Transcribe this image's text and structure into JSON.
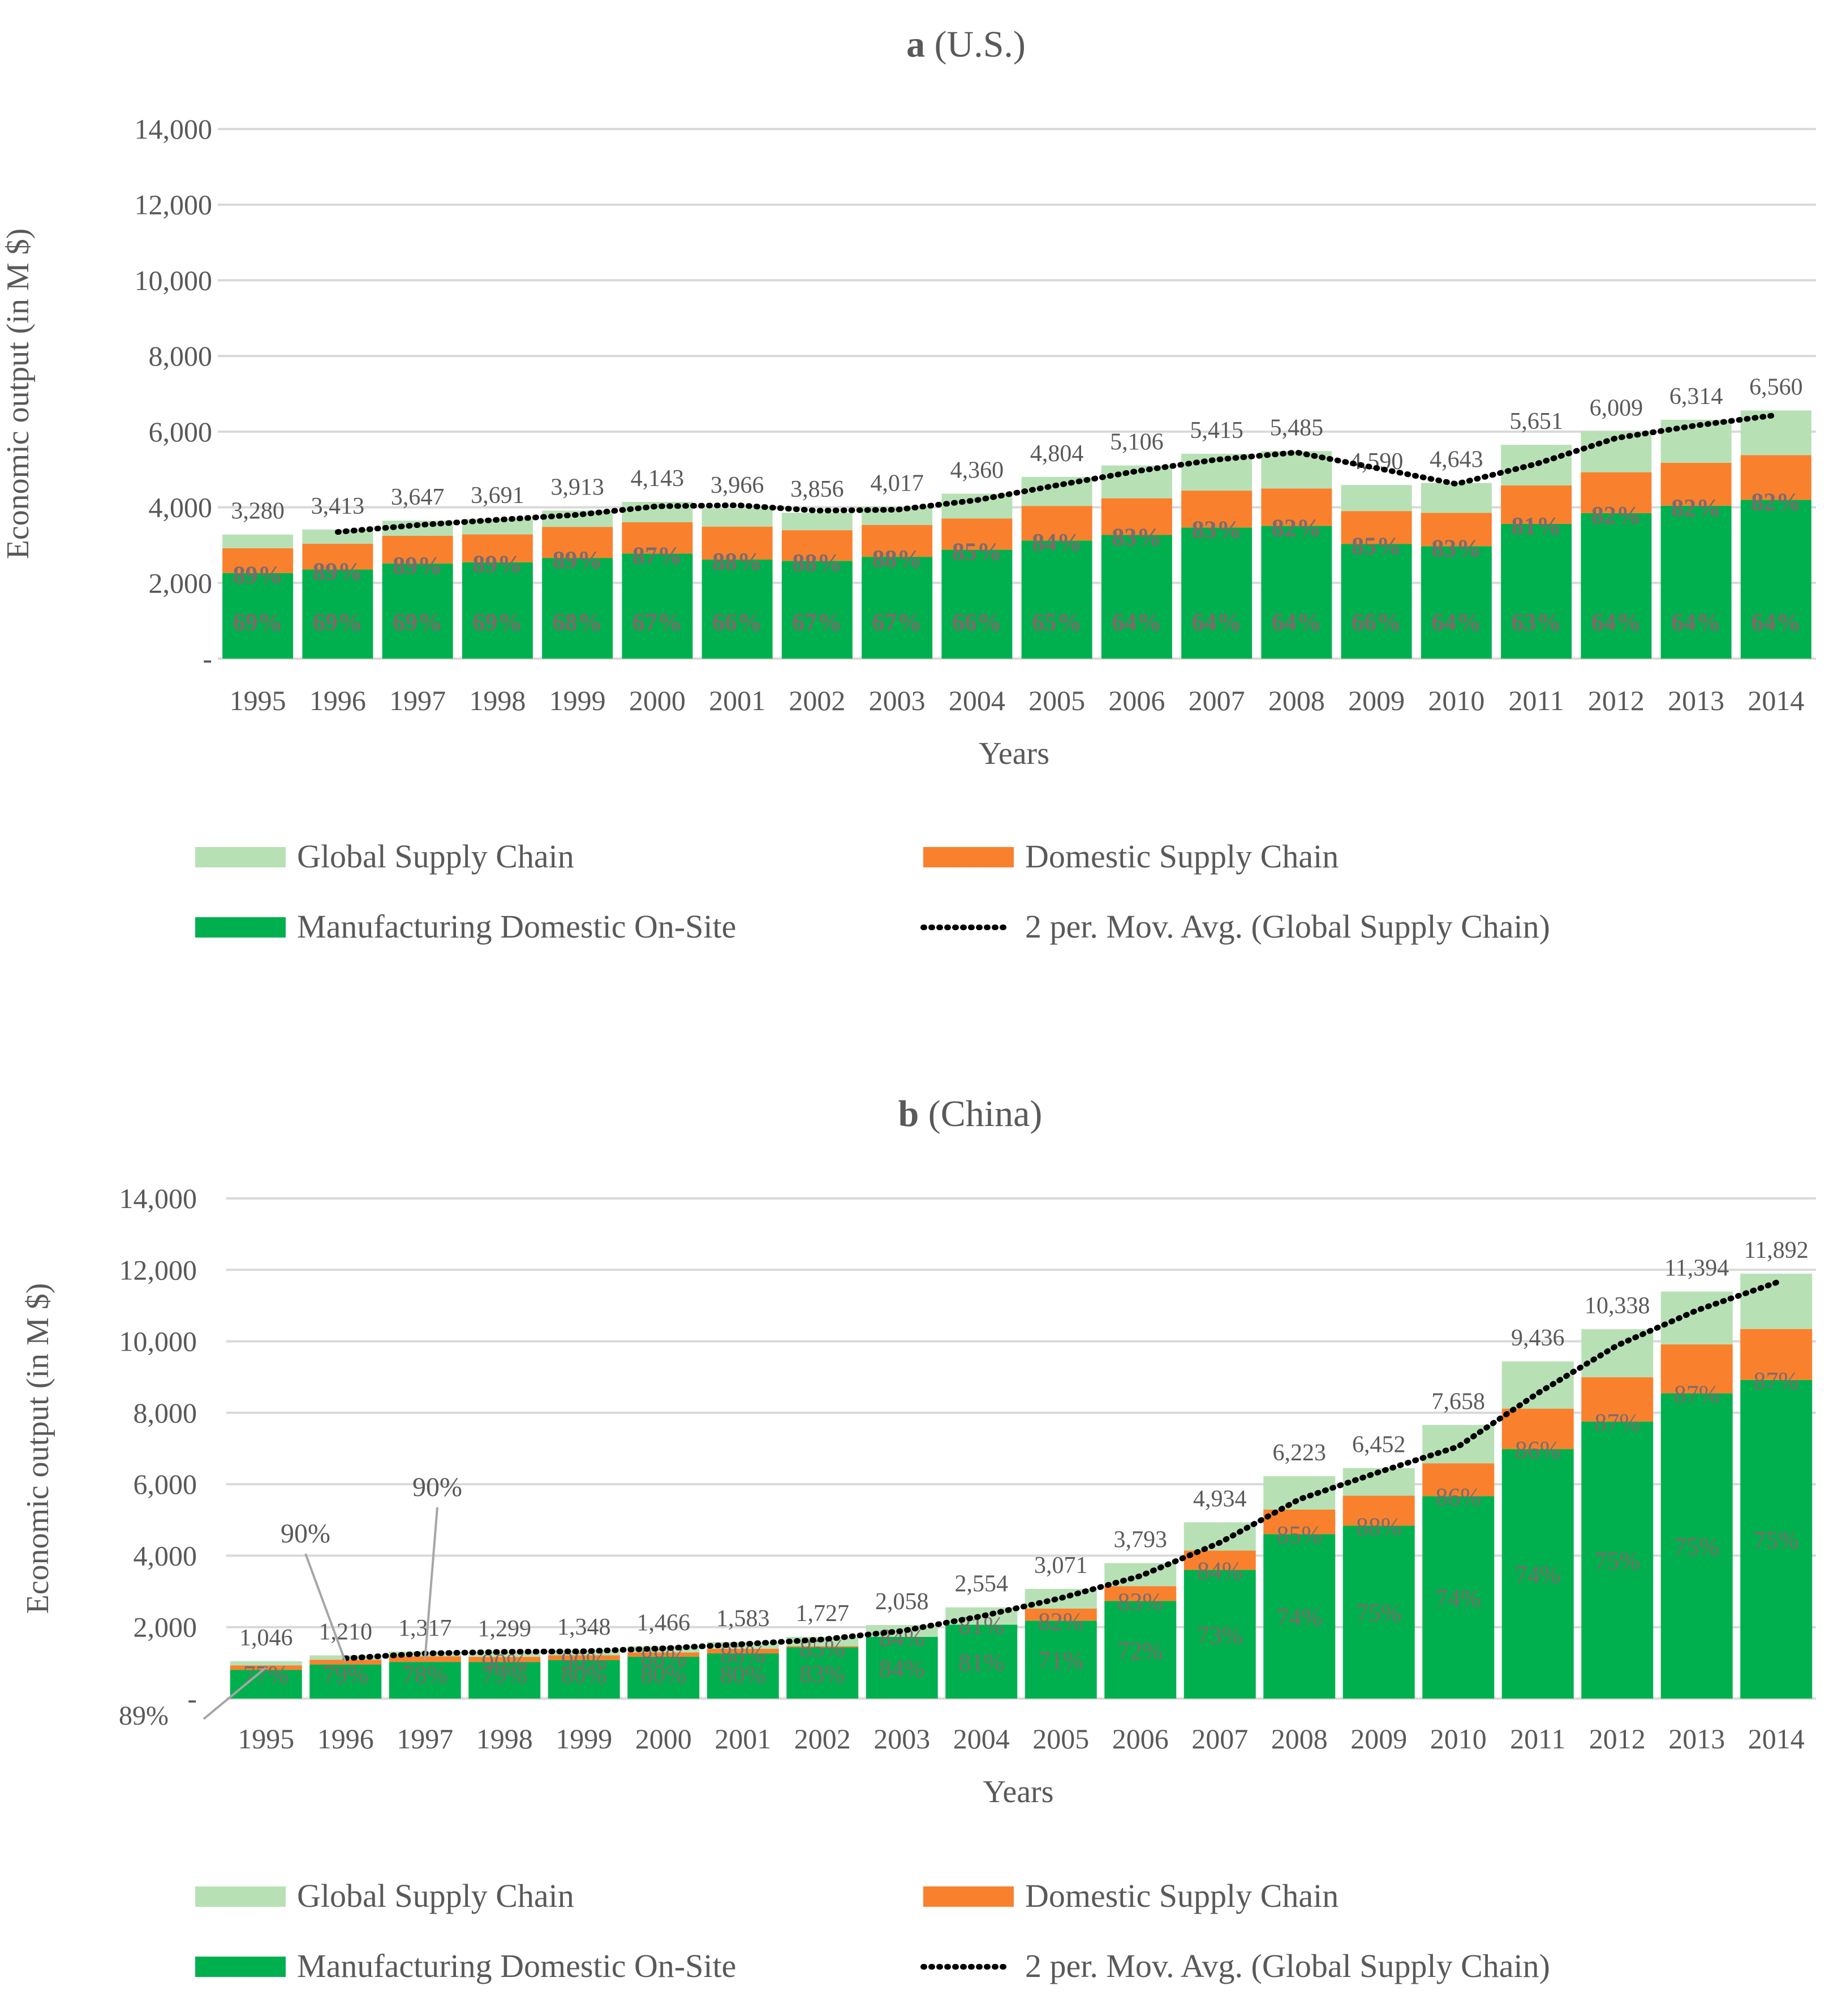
{
  "colors": {
    "global": "#b7e1b5",
    "domestic": "#f9812d",
    "onsite": "#00b04f",
    "grid": "#d9d9d9",
    "text": "#595959",
    "pct_text": "#7f6a6a",
    "movavg": "#000000"
  },
  "legend": {
    "global": "Global Supply Chain",
    "domestic": "Domestic Supply Chain",
    "onsite": "Manufacturing Domestic On-Site",
    "movavg": "2 per. Mov. Avg. (Global Supply Chain)"
  },
  "chart_data": [
    {
      "type": "bar",
      "stacked": true,
      "title_bold": "a",
      "title_rest": " (U.S.)",
      "xlabel": "Years",
      "ylabel": "Economic output (in M $)",
      "ylim": [
        0,
        14000
      ],
      "yticks": [
        0,
        2000,
        4000,
        6000,
        8000,
        10000,
        12000,
        14000
      ],
      "ytick_labels": [
        "-",
        "2,000",
        "4,000",
        "6,000",
        "8,000",
        "10,000",
        "12,000",
        "14,000"
      ],
      "grid": true,
      "categories": [
        "1995",
        "1996",
        "1997",
        "1998",
        "1999",
        "2000",
        "2001",
        "2002",
        "2003",
        "2004",
        "2005",
        "2006",
        "2007",
        "2008",
        "2009",
        "2010",
        "2011",
        "2012",
        "2013",
        "2014"
      ],
      "totals": [
        3280,
        3413,
        3647,
        3691,
        3913,
        4143,
        3966,
        3856,
        4017,
        4360,
        4804,
        5106,
        5415,
        5485,
        4590,
        4643,
        5651,
        6009,
        6314,
        6560
      ],
      "total_labels": [
        "3,280",
        "3,413",
        "3,647",
        "3,691",
        "3,913",
        "4,143",
        "3,966",
        "3,856",
        "4,017",
        "4,360",
        "4,804",
        "5,106",
        "5,415",
        "5,485",
        "4,590",
        "4,643",
        "5,651",
        "6,009",
        "6,314",
        "6,560"
      ],
      "onsite_share_pct": [
        69,
        69,
        69,
        69,
        68,
        67,
        66,
        67,
        67,
        66,
        65,
        64,
        64,
        64,
        66,
        64,
        63,
        64,
        64,
        64
      ],
      "domestic_cum_share_pct": [
        89,
        89,
        89,
        89,
        89,
        87,
        88,
        88,
        88,
        85,
        84,
        83,
        83,
        82,
        85,
        83,
        81,
        82,
        82,
        82
      ],
      "onsite_labels": [
        "69%",
        "69%",
        "69%",
        "69%",
        "68%",
        "67%",
        "66%",
        "67%",
        "67%",
        "66%",
        "65%",
        "64%",
        "64%",
        "64%",
        "66%",
        "64%",
        "63%",
        "64%",
        "64%",
        "64%"
      ],
      "domestic_labels": [
        "89%",
        "89%",
        "89%",
        "89%",
        "89%",
        "87%",
        "88%",
        "88%",
        "88%",
        "85%",
        "84%",
        "83%",
        "83%",
        "82%",
        "85%",
        "83%",
        "81%",
        "82%",
        "82%",
        "82%"
      ],
      "series": [
        {
          "name": "Manufacturing Domestic On-Site",
          "values": [
            2263,
            2355,
            2516,
            2547,
            2661,
            2776,
            2618,
            2584,
            2691,
            2878,
            3123,
            3268,
            3466,
            3510,
            3029,
            2972,
            3560,
            3846,
            4041,
            4198
          ]
        },
        {
          "name": "Domestic Supply Chain",
          "values": [
            656,
            683,
            730,
            738,
            822,
            829,
            872,
            810,
            844,
            828,
            913,
            970,
            975,
            988,
            872,
            883,
            1017,
            1081,
            1136,
            1181
          ]
        },
        {
          "name": "Global Supply Chain",
          "values": [
            361,
            375,
            401,
            406,
            430,
            538,
            476,
            462,
            482,
            654,
            768,
            868,
            974,
            987,
            689,
            788,
            1074,
            1082,
            1137,
            1181
          ]
        }
      ],
      "moving_average": {
        "name": "2 per. Mov. Avg. (Global Supply Chain)",
        "start_index": 1,
        "values": [
          3347,
          3530,
          3669,
          3802,
          4028,
          4055,
          3911,
          3937,
          4189,
          4582,
          4955,
          5261,
          5450,
          5038,
          4617,
          5147,
          5830,
          6162,
          6437
        ]
      }
    },
    {
      "type": "bar",
      "stacked": true,
      "title_bold": "b",
      "title_rest": " (China)",
      "xlabel": "Years",
      "ylabel": "Economic output (in M $)",
      "ylim": [
        0,
        14000
      ],
      "yticks": [
        0,
        2000,
        4000,
        6000,
        8000,
        10000,
        12000,
        14000
      ],
      "ytick_labels": [
        "-",
        "2,000",
        "4,000",
        "6,000",
        "8,000",
        "10,000",
        "12,000",
        "14,000"
      ],
      "grid": true,
      "categories": [
        "1995",
        "1996",
        "1997",
        "1998",
        "1999",
        "2000",
        "2001",
        "2002",
        "2003",
        "2004",
        "2005",
        "2006",
        "2007",
        "2008",
        "2009",
        "2010",
        "2011",
        "2012",
        "2013",
        "2014"
      ],
      "totals": [
        1046,
        1210,
        1317,
        1299,
        1348,
        1466,
        1583,
        1727,
        2058,
        2554,
        3071,
        3793,
        4934,
        6223,
        6452,
        7658,
        9436,
        10338,
        11394,
        11892
      ],
      "total_labels": [
        "1,046",
        "1,210",
        "1,317",
        "1,299",
        "1,348",
        "1,466",
        "1,583",
        "1,727",
        "2,058",
        "2,554",
        "3,071",
        "3,793",
        "4,934",
        "6,223",
        "6,452",
        "7,658",
        "9,436",
        "10,338",
        "11,394",
        "11,892"
      ],
      "onsite_share_pct": [
        77,
        79,
        78,
        79,
        80,
        80,
        80,
        83,
        84,
        81,
        71,
        72,
        73,
        74,
        75,
        74,
        74,
        75,
        75,
        75
      ],
      "domestic_cum_share_pct": [
        89,
        90,
        90,
        90,
        90,
        88,
        88,
        85,
        84,
        81,
        82,
        83,
        84,
        85,
        88,
        86,
        86,
        87,
        87,
        87
      ],
      "onsite_labels": [
        "77%",
        "79%",
        "78%",
        "79%",
        "80%",
        "80%",
        "80%",
        "83%",
        "84%",
        "81%",
        "71%",
        "72%",
        "73%",
        "74%",
        "75%",
        "74%",
        "74%",
        "75%",
        "75%",
        "75%"
      ],
      "domestic_labels": [
        "",
        "",
        "",
        "90%",
        "90%",
        "88%",
        "88%",
        "85%",
        "84%",
        "81%",
        "82%",
        "83%",
        "84%",
        "85%",
        "88%",
        "86%",
        "86%",
        "87%",
        "87%",
        "87%"
      ],
      "callouts": [
        {
          "label": "89%",
          "index": 0
        },
        {
          "label": "90%",
          "index": 1
        },
        {
          "label": "90%",
          "index": 2
        }
      ],
      "series": [
        {
          "name": "Manufacturing Domestic On-Site",
          "values": [
            805,
            956,
            1027,
            1026,
            1078,
            1173,
            1266,
            1433,
            1729,
            2069,
            2180,
            2731,
            3602,
            4605,
            4839,
            5667,
            6983,
            7754,
            8546,
            8919
          ]
        },
        {
          "name": "Domestic Supply Chain",
          "values": [
            126,
            133,
            158,
            143,
            135,
            117,
            127,
            34,
            0,
            0,
            338,
            417,
            543,
            685,
            839,
            919,
            1132,
            1240,
            1367,
            1427
          ]
        },
        {
          "name": "Global Supply Chain",
          "values": [
            115,
            121,
            132,
            130,
            135,
            176,
            190,
            260,
            329,
            485,
            553,
            645,
            789,
            933,
            774,
            1072,
            1321,
            1344,
            1481,
            1546
          ]
        }
      ],
      "moving_average": {
        "name": "2 per. Mov. Avg. (Global Supply Chain)",
        "start_index": 1,
        "values": [
          1128,
          1264,
          1308,
          1324,
          1407,
          1525,
          1655,
          1893,
          2306,
          2813,
          3432,
          4364,
          5579,
          6338,
          7055,
          8547,
          9887,
          10866,
          11643
        ]
      }
    }
  ]
}
